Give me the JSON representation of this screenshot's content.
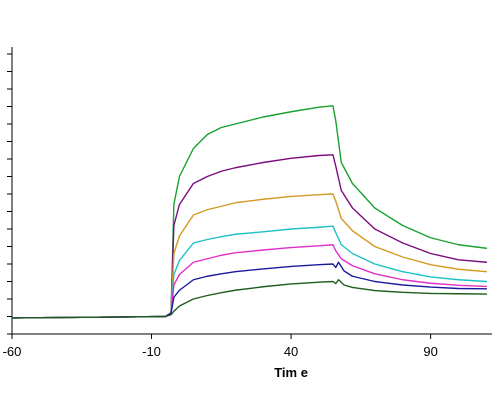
{
  "chart_data": {
    "type": "line",
    "title": "",
    "xlabel": "Tim e",
    "ylabel": "",
    "xlim": [
      -60,
      112
    ],
    "ylim": [
      -0.05,
      0.77
    ],
    "x_ticks": [
      -60,
      -10,
      40,
      90
    ],
    "x_tick_labels": [
      "-60",
      "-10",
      "40",
      "90"
    ],
    "y_ticks": [
      -0.05,
      0.0,
      0.05,
      0.1,
      0.15,
      0.2,
      0.25,
      0.3,
      0.35,
      0.4,
      0.45,
      0.5,
      0.55,
      0.6,
      0.65,
      0.7,
      0.75
    ],
    "y_axis": {
      "grid": false,
      "tick_labels_visible": false
    },
    "x_axis": {
      "grid": false
    },
    "legend": "none",
    "series": [
      {
        "color": "#1aa130",
        "points": [
          [
            -60,
            -0.004
          ],
          [
            -45,
            -0.003
          ],
          [
            -30,
            -0.002
          ],
          [
            -15,
            -0.001
          ],
          [
            -5,
            0.0
          ],
          [
            -3,
            0.01
          ],
          [
            -2,
            0.32
          ],
          [
            0,
            0.4
          ],
          [
            5,
            0.48
          ],
          [
            10,
            0.52
          ],
          [
            15,
            0.54
          ],
          [
            20,
            0.55
          ],
          [
            30,
            0.57
          ],
          [
            40,
            0.585
          ],
          [
            50,
            0.598
          ],
          [
            55,
            0.602
          ],
          [
            56,
            0.56
          ],
          [
            58,
            0.44
          ],
          [
            62,
            0.38
          ],
          [
            70,
            0.31
          ],
          [
            80,
            0.26
          ],
          [
            90,
            0.225
          ],
          [
            100,
            0.205
          ],
          [
            110,
            0.195
          ]
        ]
      },
      {
        "color": "#7a0c7e",
        "points": [
          [
            -60,
            -0.004
          ],
          [
            -45,
            -0.003
          ],
          [
            -30,
            -0.002
          ],
          [
            -15,
            -0.001
          ],
          [
            -5,
            0.0
          ],
          [
            -3,
            0.01
          ],
          [
            -2,
            0.26
          ],
          [
            0,
            0.32
          ],
          [
            5,
            0.38
          ],
          [
            10,
            0.4
          ],
          [
            15,
            0.415
          ],
          [
            20,
            0.425
          ],
          [
            30,
            0.44
          ],
          [
            40,
            0.452
          ],
          [
            50,
            0.46
          ],
          [
            55,
            0.462
          ],
          [
            56,
            0.43
          ],
          [
            58,
            0.36
          ],
          [
            62,
            0.31
          ],
          [
            70,
            0.25
          ],
          [
            80,
            0.21
          ],
          [
            90,
            0.18
          ],
          [
            100,
            0.162
          ],
          [
            110,
            0.155
          ]
        ]
      },
      {
        "color": "#d39a24",
        "points": [
          [
            -60,
            -0.004
          ],
          [
            -45,
            -0.003
          ],
          [
            -30,
            -0.002
          ],
          [
            -15,
            -0.001
          ],
          [
            -5,
            0.0
          ],
          [
            -3,
            0.01
          ],
          [
            -2,
            0.18
          ],
          [
            0,
            0.23
          ],
          [
            5,
            0.29
          ],
          [
            10,
            0.305
          ],
          [
            15,
            0.315
          ],
          [
            20,
            0.325
          ],
          [
            30,
            0.335
          ],
          [
            40,
            0.343
          ],
          [
            50,
            0.348
          ],
          [
            55,
            0.35
          ],
          [
            56,
            0.33
          ],
          [
            58,
            0.28
          ],
          [
            62,
            0.245
          ],
          [
            70,
            0.2
          ],
          [
            80,
            0.17
          ],
          [
            90,
            0.148
          ],
          [
            100,
            0.135
          ],
          [
            110,
            0.128
          ]
        ]
      },
      {
        "color": "#1fc1c7",
        "points": [
          [
            -60,
            -0.004
          ],
          [
            -45,
            -0.003
          ],
          [
            -30,
            -0.002
          ],
          [
            -15,
            -0.001
          ],
          [
            -5,
            0.0
          ],
          [
            -3,
            0.01
          ],
          [
            -2,
            0.12
          ],
          [
            0,
            0.16
          ],
          [
            5,
            0.21
          ],
          [
            10,
            0.22
          ],
          [
            15,
            0.228
          ],
          [
            20,
            0.235
          ],
          [
            30,
            0.242
          ],
          [
            40,
            0.25
          ],
          [
            50,
            0.255
          ],
          [
            55,
            0.258
          ],
          [
            56,
            0.24
          ],
          [
            58,
            0.205
          ],
          [
            62,
            0.18
          ],
          [
            70,
            0.15
          ],
          [
            80,
            0.128
          ],
          [
            90,
            0.113
          ],
          [
            100,
            0.105
          ],
          [
            110,
            0.1
          ]
        ]
      },
      {
        "color": "#e02fc6",
        "points": [
          [
            -60,
            -0.004
          ],
          [
            -45,
            -0.003
          ],
          [
            -30,
            -0.002
          ],
          [
            -15,
            -0.001
          ],
          [
            -5,
            0.0
          ],
          [
            -3,
            0.01
          ],
          [
            -2,
            0.09
          ],
          [
            0,
            0.12
          ],
          [
            5,
            0.155
          ],
          [
            10,
            0.165
          ],
          [
            15,
            0.175
          ],
          [
            20,
            0.182
          ],
          [
            30,
            0.19
          ],
          [
            40,
            0.197
          ],
          [
            50,
            0.202
          ],
          [
            55,
            0.205
          ],
          [
            56,
            0.188
          ],
          [
            58,
            0.165
          ],
          [
            62,
            0.145
          ],
          [
            70,
            0.122
          ],
          [
            80,
            0.105
          ],
          [
            90,
            0.095
          ],
          [
            100,
            0.089
          ],
          [
            110,
            0.086
          ]
        ]
      },
      {
        "color": "#1a1a9e",
        "points": [
          [
            -60,
            -0.004
          ],
          [
            -45,
            -0.003
          ],
          [
            -30,
            -0.002
          ],
          [
            -15,
            -0.001
          ],
          [
            -5,
            0.0
          ],
          [
            -3,
            0.01
          ],
          [
            -2,
            0.055
          ],
          [
            0,
            0.075
          ],
          [
            5,
            0.105
          ],
          [
            10,
            0.115
          ],
          [
            15,
            0.122
          ],
          [
            20,
            0.128
          ],
          [
            30,
            0.136
          ],
          [
            40,
            0.143
          ],
          [
            50,
            0.148
          ],
          [
            55,
            0.15
          ],
          [
            56,
            0.14
          ],
          [
            57,
            0.155
          ],
          [
            59,
            0.13
          ],
          [
            62,
            0.115
          ],
          [
            70,
            0.1
          ],
          [
            80,
            0.09
          ],
          [
            90,
            0.084
          ],
          [
            100,
            0.08
          ],
          [
            110,
            0.079
          ]
        ]
      },
      {
        "color": "#1c5d1c",
        "points": [
          [
            -60,
            -0.004
          ],
          [
            -45,
            -0.003
          ],
          [
            -30,
            -0.002
          ],
          [
            -15,
            -0.001
          ],
          [
            -5,
            0.0
          ],
          [
            -3,
            0.005
          ],
          [
            -2,
            0.015
          ],
          [
            0,
            0.03
          ],
          [
            5,
            0.05
          ],
          [
            10,
            0.06
          ],
          [
            15,
            0.068
          ],
          [
            20,
            0.075
          ],
          [
            30,
            0.085
          ],
          [
            40,
            0.093
          ],
          [
            50,
            0.098
          ],
          [
            55,
            0.1
          ],
          [
            56,
            0.094
          ],
          [
            57,
            0.105
          ],
          [
            59,
            0.09
          ],
          [
            62,
            0.083
          ],
          [
            70,
            0.074
          ],
          [
            80,
            0.069
          ],
          [
            90,
            0.066
          ],
          [
            100,
            0.065
          ],
          [
            110,
            0.064
          ]
        ]
      }
    ]
  }
}
